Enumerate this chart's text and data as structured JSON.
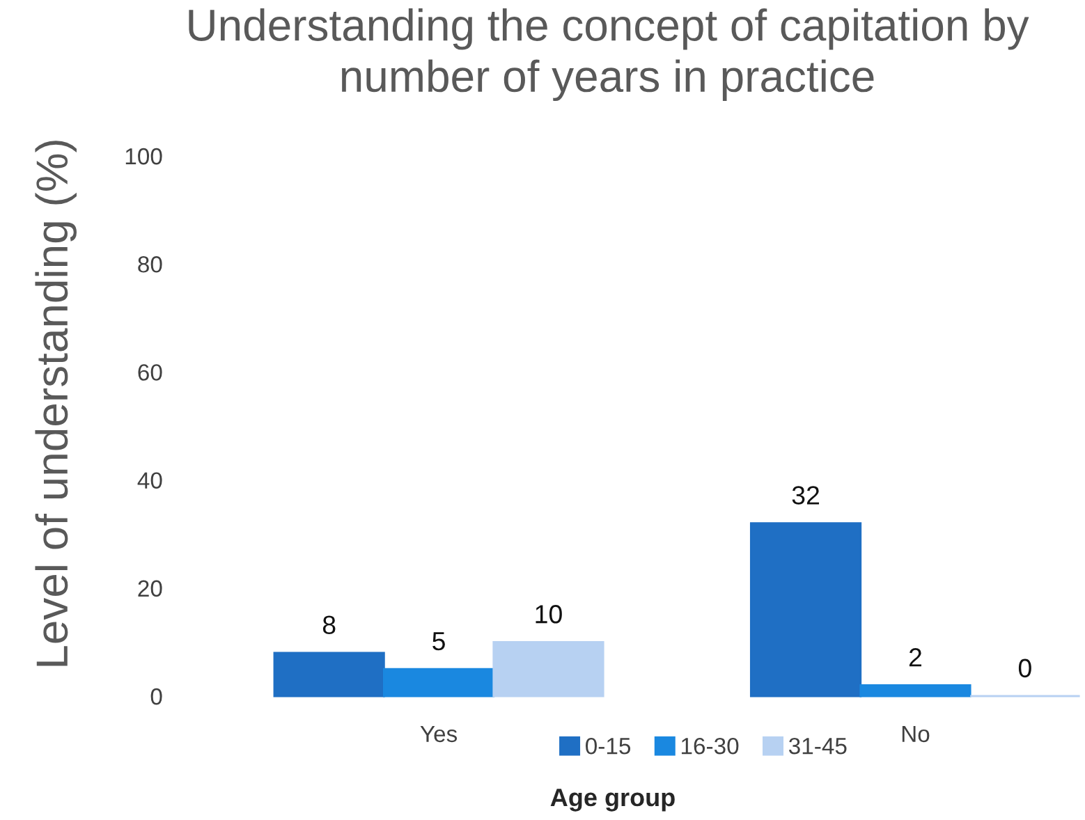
{
  "chart_data": {
    "type": "bar",
    "title": "Understanding the concept of capitation by number of years in practice",
    "xlabel": "Age group",
    "ylabel": "Level of understanding (%)",
    "categories": [
      "Yes",
      "No"
    ],
    "series": [
      {
        "name": "0-15",
        "color": "#1f6fc4",
        "values": [
          8,
          32
        ]
      },
      {
        "name": "16-30",
        "color": "#1a88e0",
        "values": [
          5,
          2
        ]
      },
      {
        "name": "31-45",
        "color": "#b7d1f2",
        "values": [
          10,
          0
        ]
      }
    ],
    "ylim": [
      0,
      100
    ],
    "yticks": [
      0,
      20,
      40,
      60,
      80,
      100
    ],
    "data_labels": true,
    "legend": "bottom",
    "grid": false
  }
}
